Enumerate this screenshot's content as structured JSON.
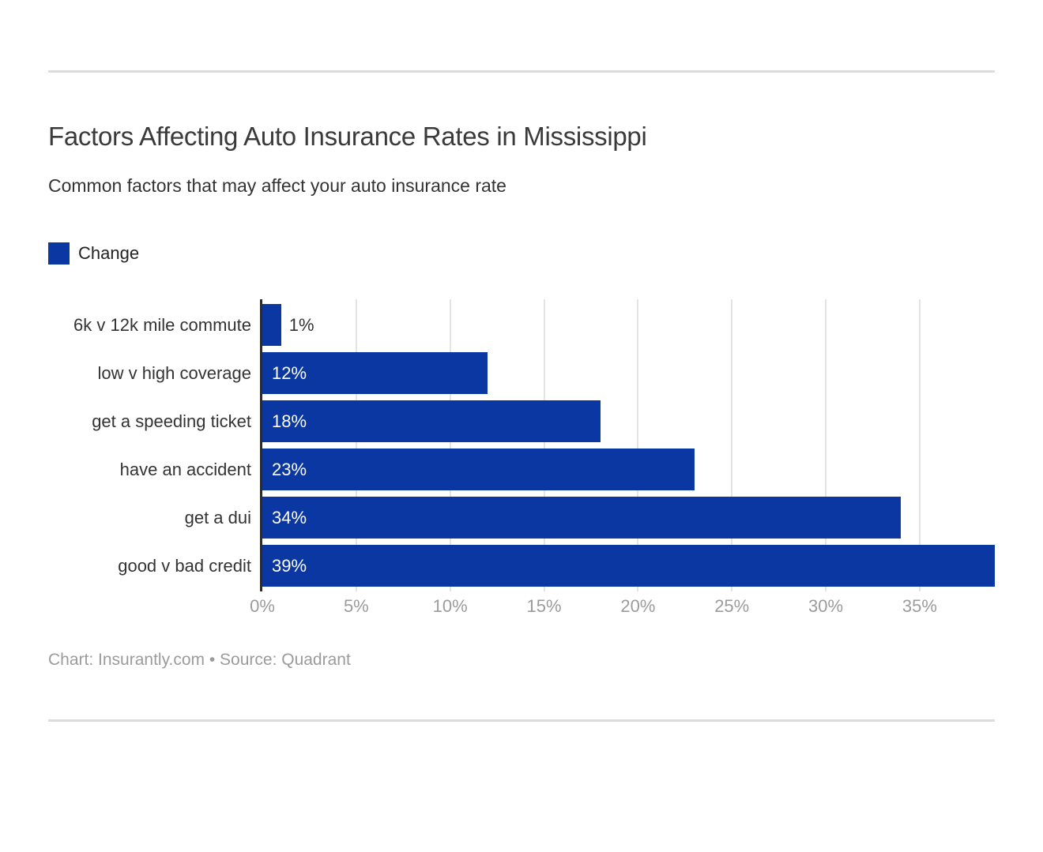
{
  "header": {
    "title": "Factors Affecting Auto Insurance Rates in Mississippi",
    "subtitle": "Common factors that may affect your auto insurance rate"
  },
  "legend": {
    "label": "Change"
  },
  "chart_data": {
    "type": "bar",
    "orientation": "horizontal",
    "title": "Factors Affecting Auto Insurance Rates in Mississippi",
    "subtitle": "Common factors that may affect your auto insurance rate",
    "series_name": "Change",
    "categories": [
      "6k v 12k mile commute",
      "low v high coverage",
      "get a speeding ticket",
      "have an accident",
      "get a dui",
      "good v bad credit"
    ],
    "values": [
      1,
      12,
      18,
      23,
      34,
      39
    ],
    "value_labels": [
      "1%",
      "12%",
      "18%",
      "23%",
      "34%",
      "39%"
    ],
    "xlim": [
      0,
      39
    ],
    "x_tick_values": [
      0,
      5,
      10,
      15,
      20,
      25,
      30,
      35
    ],
    "x_ticks": [
      "0%",
      "5%",
      "10%",
      "15%",
      "20%",
      "25%",
      "30%",
      "35%"
    ],
    "grid": true,
    "legend_position": "top-left",
    "bar_color": "#0a37a2",
    "axis_line_color": "#2b2b2b",
    "gridline_color": "#e4e4e4",
    "tick_label_color": "#9b9b9b"
  },
  "footer": {
    "credit": "Chart: Insurantly.com • Source: Quadrant"
  }
}
